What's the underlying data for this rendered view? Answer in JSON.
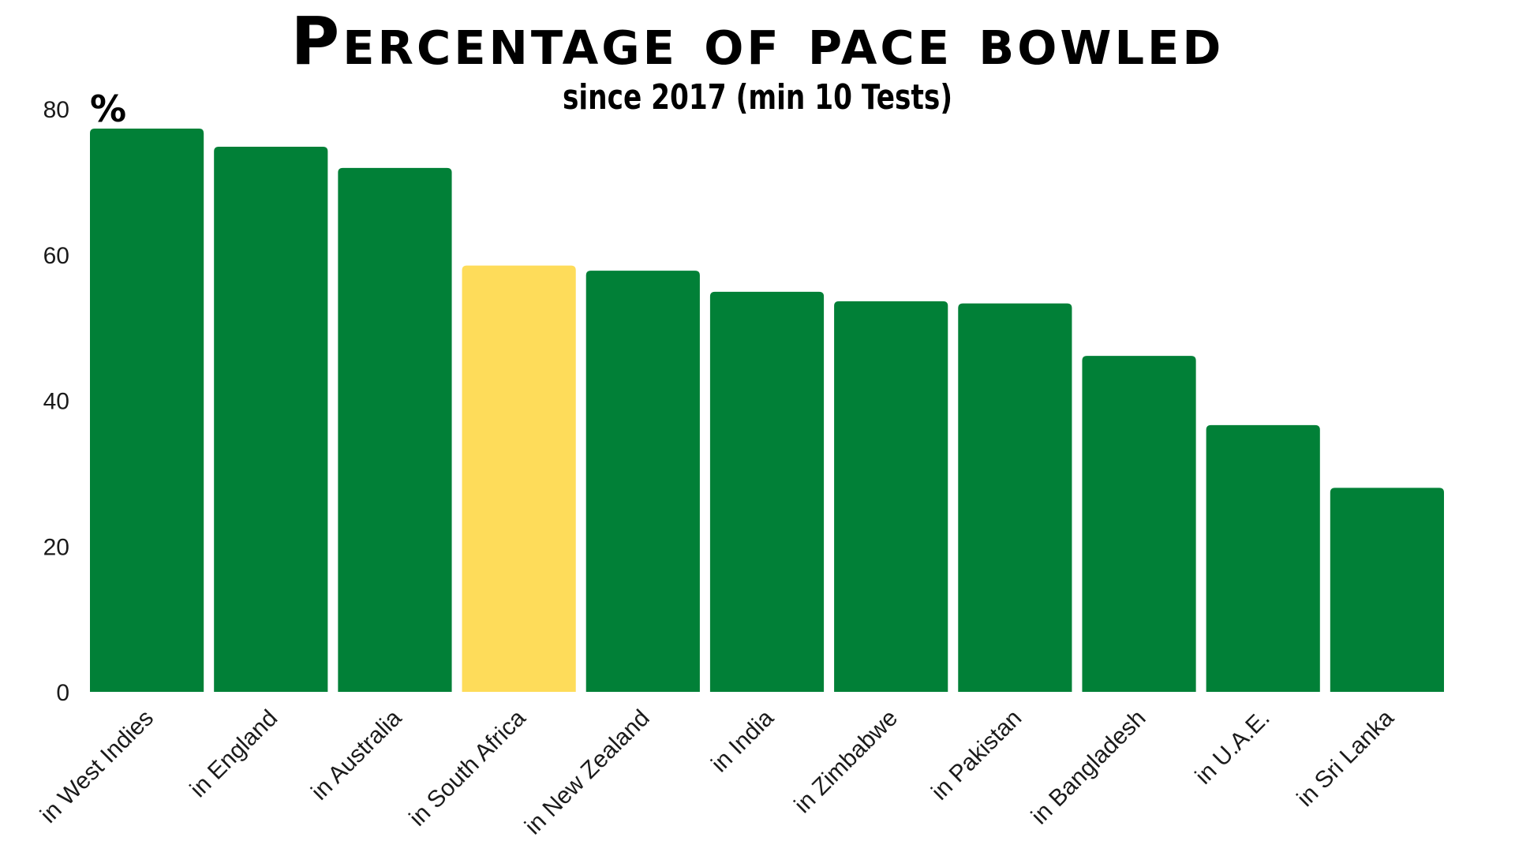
{
  "chart_data": {
    "type": "bar",
    "title": "Percentage of pace bowled",
    "subtitle": "since 2017 (min 10 Tests)",
    "unit_label": "%",
    "categories": [
      "in West Indies",
      "in England",
      "in Australia",
      "in South Africa",
      "in New Zealand",
      "in India",
      "in Zimbabwe",
      "in Pakistan",
      "in Bangladesh",
      "in U.A.E.",
      "in Sri Lanka"
    ],
    "values": [
      77.3,
      74.8,
      71.9,
      58.5,
      57.8,
      54.9,
      53.6,
      53.3,
      46.1,
      36.6,
      28.0
    ],
    "highlight_category": "in South Africa",
    "colors": {
      "bar": "#018037",
      "highlight": "#fedc5a"
    },
    "yticks": [
      0,
      20,
      40,
      60,
      80
    ],
    "ylim": [
      0,
      80
    ],
    "grid": false,
    "legend": "none"
  }
}
